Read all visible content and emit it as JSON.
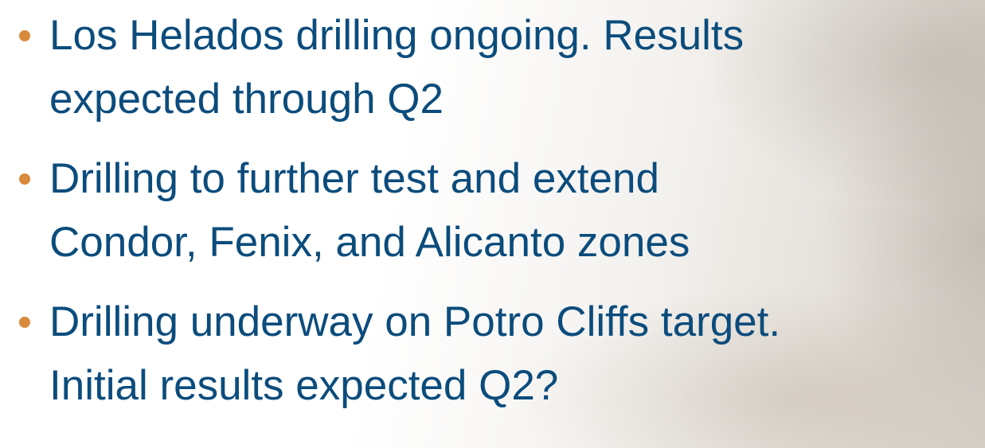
{
  "items": [
    {
      "lines": [
        "Los Helados drilling ongoing. Results",
        "expected through Q2"
      ]
    },
    {
      "lines": [
        "Drilling to further test and extend",
        "Condor, Fenix, and Alicanto zones"
      ]
    },
    {
      "lines": [
        "Drilling underway on Potro Cliffs target.",
        "Initial results expected Q2?"
      ]
    }
  ]
}
